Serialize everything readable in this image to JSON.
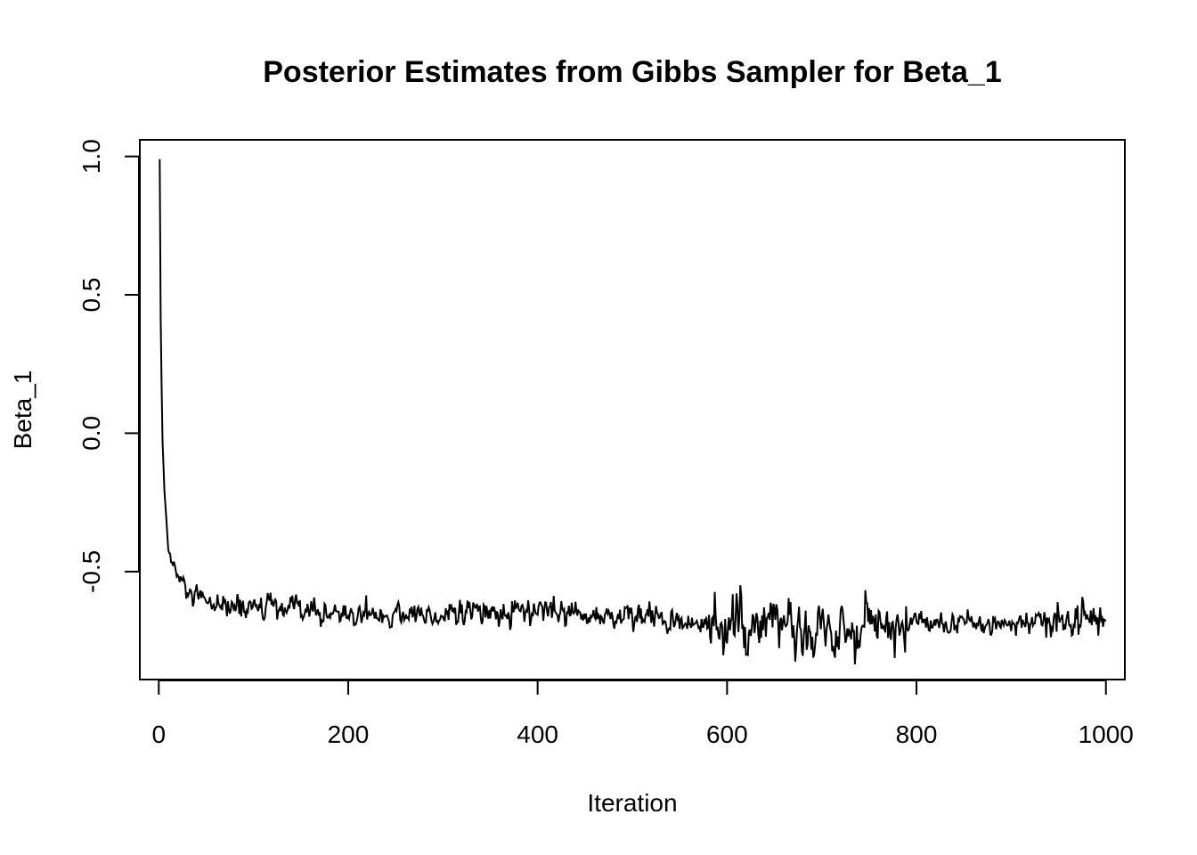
{
  "chart_data": {
    "type": "line",
    "title": "Posterior Estimates from Gibbs Sampler for Beta_1",
    "xlabel": "Iteration",
    "ylabel": "Beta_1",
    "xlim": [
      -20,
      1020
    ],
    "ylim": [
      -0.89,
      1.06
    ],
    "xticks": [
      0,
      200,
      400,
      600,
      800,
      1000
    ],
    "xtick_labels": [
      "0",
      "200",
      "400",
      "600",
      "800",
      "1000"
    ],
    "yticks": [
      -0.5,
      0.0,
      0.5,
      1.0
    ],
    "ytick_labels": [
      "-0.5",
      "0.0",
      "0.5",
      "1.0"
    ],
    "grid": false,
    "legend": "none",
    "line_color": "#000000",
    "series": [
      {
        "x_start": 1,
        "x_end": 1000,
        "n_points": 1000,
        "values_trend": [
          {
            "x": 1,
            "y": 0.99
          },
          {
            "x": 2,
            "y": 0.42
          },
          {
            "x": 3,
            "y": 0.17
          },
          {
            "x": 4,
            "y": -0.03
          },
          {
            "x": 6,
            "y": -0.21
          },
          {
            "x": 8,
            "y": -0.31
          },
          {
            "x": 10,
            "y": -0.42
          },
          {
            "x": 15,
            "y": -0.48
          },
          {
            "x": 20,
            "y": -0.52
          },
          {
            "x": 30,
            "y": -0.58
          },
          {
            "x": 50,
            "y": -0.62
          },
          {
            "x": 100,
            "y": -0.63
          },
          {
            "x": 150,
            "y": -0.645
          },
          {
            "x": 200,
            "y": -0.655
          },
          {
            "x": 300,
            "y": -0.655
          },
          {
            "x": 400,
            "y": -0.645
          },
          {
            "x": 500,
            "y": -0.665
          },
          {
            "x": 600,
            "y": -0.695
          },
          {
            "x": 700,
            "y": -0.705
          },
          {
            "x": 800,
            "y": -0.69
          },
          {
            "x": 900,
            "y": -0.69
          },
          {
            "x": 1000,
            "y": -0.665
          }
        ],
        "noise_sd_by_segment": [
          {
            "from": 1,
            "to": 30,
            "sd": 0.02
          },
          {
            "from": 30,
            "to": 580,
            "sd": 0.022
          },
          {
            "from": 580,
            "to": 790,
            "sd": 0.045
          },
          {
            "from": 790,
            "to": 940,
            "sd": 0.02
          },
          {
            "from": 940,
            "to": 1000,
            "sd": 0.035
          }
        ]
      }
    ]
  }
}
